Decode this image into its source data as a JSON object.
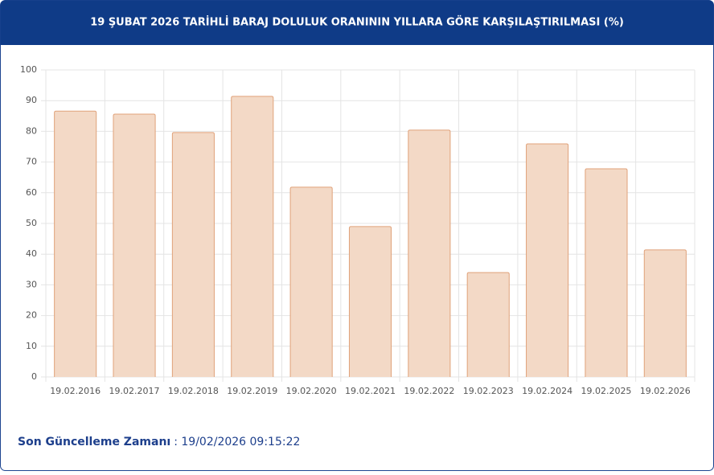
{
  "chart_data": {
    "type": "bar",
    "title": "19 ŞUBAT 2026 TARİHLİ BARAJ DOLULUK ORANININ YILLARA GÖRE KARŞILAŞTIRILMASI (%)",
    "categories": [
      "19.02.2016",
      "19.02.2017",
      "19.02.2018",
      "19.02.2019",
      "19.02.2020",
      "19.02.2021",
      "19.02.2022",
      "19.02.2023",
      "19.02.2024",
      "19.02.2025",
      "19.02.2026"
    ],
    "values": [
      86.6,
      85.6,
      79.6,
      91.4,
      61.8,
      49.0,
      80.4,
      34.0,
      75.9,
      67.8,
      41.4
    ],
    "color": "#f3d9c6",
    "edge_color": "#e0a27a",
    "ylim": [
      0,
      100
    ],
    "yticks": [
      0,
      10,
      20,
      30,
      40,
      50,
      60,
      70,
      80,
      90,
      100
    ],
    "grid": true
  },
  "footer": {
    "label": "Son Güncelleme Zamanı",
    "value": ": 19/02/2026 09:15:22"
  }
}
